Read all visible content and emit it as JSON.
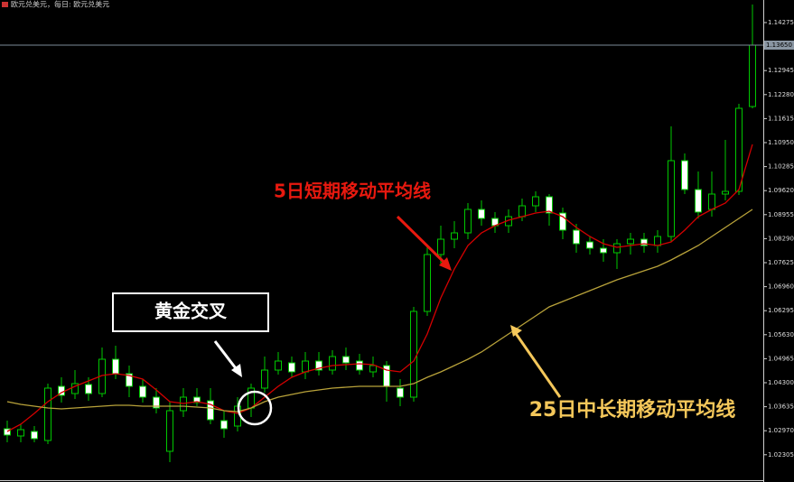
{
  "window_title": "欧元兑美元，每日: 欧元兑美元",
  "chart_data": {
    "type": "candlestick",
    "up_color": "#000000",
    "down_color": "#ffffff",
    "outline_color": "#00c800",
    "open": [
      1.03025,
      1.02825,
      1.0295,
      1.027,
      1.042,
      1.04,
      1.0425,
      1.04,
      1.0495,
      1.0455,
      1.042,
      1.039,
      1.024,
      1.03525,
      1.039,
      1.038,
      1.0325,
      1.031,
      1.036,
      1.0415,
      1.0465,
      1.0485,
      1.046,
      1.049,
      1.0465,
      1.05025,
      1.049,
      1.046,
      1.04775,
      1.0415,
      1.039,
      1.06275,
      1.0785,
      1.08275,
      1.0845,
      1.091,
      1.0885,
      1.0865,
      1.089,
      1.092,
      1.0945,
      1.09,
      1.08525,
      1.082,
      1.08025,
      1.079,
      1.0815,
      1.08275,
      1.081,
      1.0835,
      1.1045,
      1.0965,
      1.091,
      1.09525,
      1.096,
      1.1195
    ],
    "high": [
      1.0325,
      1.0315,
      1.031,
      1.04275,
      1.0445,
      1.0465,
      1.0445,
      1.05275,
      1.05325,
      1.04775,
      1.044,
      1.0415,
      1.03775,
      1.0415,
      1.0415,
      1.0415,
      1.03525,
      1.039,
      1.04275,
      1.05025,
      1.0515,
      1.05025,
      1.0515,
      1.0515,
      1.052,
      1.05275,
      1.051,
      1.05025,
      1.049,
      1.044,
      1.064,
      1.081,
      1.0865,
      1.08775,
      1.09275,
      1.0935,
      1.09025,
      1.091,
      1.094,
      1.096,
      1.09525,
      1.0915,
      1.087,
      1.0835,
      1.08275,
      1.08275,
      1.0845,
      1.0845,
      1.08525,
      1.114,
      1.1065,
      1.1015,
      1.1015,
      1.11025,
      1.12025,
      1.14775
    ],
    "low": [
      1.0265,
      1.0265,
      1.0265,
      1.026,
      1.0375,
      1.0385,
      1.038,
      1.039,
      1.044,
      1.039,
      1.0375,
      1.0345,
      1.021,
      1.0335,
      1.0365,
      1.0315,
      1.02775,
      1.0295,
      1.0335,
      1.04025,
      1.04525,
      1.0445,
      1.044,
      1.045,
      1.04525,
      1.0465,
      1.04525,
      1.0445,
      1.03775,
      1.0365,
      1.03775,
      1.0615,
      1.076,
      1.08025,
      1.08275,
      1.0865,
      1.0845,
      1.0845,
      1.08775,
      1.09025,
      1.0865,
      1.08275,
      1.079,
      1.0785,
      1.0765,
      1.0745,
      1.0785,
      1.079,
      1.079,
      1.082,
      1.09525,
      1.0885,
      1.089,
      1.0935,
      1.095,
      1.119
    ],
    "close": [
      1.0285,
      1.03,
      1.0275,
      1.0415,
      1.0395,
      1.04275,
      1.04,
      1.0495,
      1.0455,
      1.042,
      1.039,
      1.036,
      1.03525,
      1.039,
      1.0375,
      1.03275,
      1.03025,
      1.0365,
      1.0415,
      1.0465,
      1.049,
      1.046,
      1.049,
      1.0465,
      1.05025,
      1.0485,
      1.0465,
      1.04775,
      1.042,
      1.039,
      1.06275,
      1.0785,
      1.08275,
      1.0845,
      1.091,
      1.0885,
      1.0865,
      1.089,
      1.092,
      1.0945,
      1.09,
      1.08525,
      1.0815,
      1.08025,
      1.079,
      1.0815,
      1.08275,
      1.081,
      1.0835,
      1.1045,
      1.0965,
      1.09025,
      1.09525,
      1.096,
      1.119,
      1.1365
    ],
    "lines": [
      {
        "color": "#d40000",
        "values": [
          1.0295,
          1.0315,
          1.0345,
          1.03775,
          1.04025,
          1.042,
          1.0435,
          1.045,
          1.0455,
          1.045,
          1.044,
          1.041,
          1.03775,
          1.03725,
          1.03775,
          1.037,
          1.03525,
          1.0345,
          1.036,
          1.039,
          1.042,
          1.0445,
          1.046,
          1.047,
          1.04775,
          1.048,
          1.04825,
          1.048,
          1.0465,
          1.046,
          1.049,
          1.0565,
          1.0665,
          1.0745,
          1.081,
          1.0845,
          1.0865,
          1.088,
          1.089,
          1.09,
          1.0905,
          1.089,
          1.086,
          1.0835,
          1.0815,
          1.0805,
          1.081,
          1.0815,
          1.081,
          1.082,
          1.08525,
          1.089,
          1.091,
          1.09275,
          1.0965,
          1.109
        ]
      },
      {
        "color": "#b8a23a",
        "values": [
          1.03775,
          1.037,
          1.0365,
          1.036,
          1.03575,
          1.036,
          1.03625,
          1.0365,
          1.03675,
          1.03675,
          1.0365,
          1.0365,
          1.0365,
          1.0365,
          1.03625,
          1.036,
          1.03525,
          1.035,
          1.036,
          1.03775,
          1.039,
          1.03975,
          1.0405,
          1.041,
          1.0415,
          1.04175,
          1.042,
          1.042,
          1.042,
          1.042,
          1.04275,
          1.0445,
          1.046,
          1.04775,
          1.0495,
          1.0515,
          1.054,
          1.0565,
          1.059,
          1.0615,
          1.064,
          1.0655,
          1.067,
          1.0685,
          1.07,
          1.0715,
          1.07275,
          1.074,
          1.07525,
          1.077,
          1.079,
          1.081,
          1.0835,
          1.086,
          1.0885,
          1.091
        ]
      }
    ],
    "current_price": {
      "value": 1.1365,
      "label": "1.13650"
    },
    "ylim": [
      1.0155,
      1.149
    ],
    "yticks": [
      1.14275,
      1.12945,
      {
        "value": 1.1228,
        "label": "1.12280"
      },
      1.11615,
      {
        "value": 1.1095,
        "label": "1.10950"
      },
      1.10285,
      {
        "value": 1.0962,
        "label": "1.09620"
      },
      1.08955,
      {
        "value": 1.0829,
        "label": "1.08290"
      },
      1.07625,
      {
        "value": 1.0696,
        "label": "1.06960"
      },
      1.06295,
      {
        "value": 1.0563,
        "label": "1.05630"
      },
      1.04965,
      {
        "value": 1.043,
        "label": "1.04300"
      },
      1.03635,
      {
        "value": 1.0297,
        "label": "1.02970"
      },
      1.02305
    ],
    "annotations": [
      {
        "text": "5日短期移动平均线",
        "color": "#e8190f"
      },
      {
        "text": "25日中长期移动平均线",
        "color": "#f4c75a"
      },
      {
        "text": "黄金交叉",
        "color": "#ffffff"
      }
    ]
  }
}
